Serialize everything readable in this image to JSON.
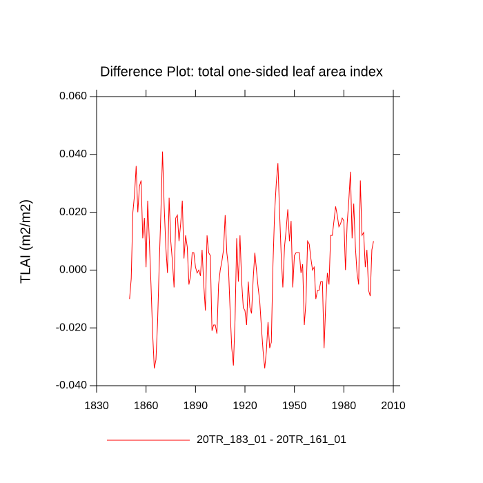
{
  "chart_data": {
    "type": "line",
    "title": "Difference Plot: total one-sided leaf area index",
    "y_label": "TLAI  (m2/m2)",
    "x": [
      1850,
      1851,
      1852,
      1853,
      1854,
      1855,
      1856,
      1857,
      1858,
      1859,
      1860,
      1861,
      1862,
      1863,
      1864,
      1865,
      1866,
      1867,
      1868,
      1869,
      1870,
      1871,
      1872,
      1873,
      1874,
      1875,
      1876,
      1877,
      1878,
      1879,
      1880,
      1881,
      1882,
      1883,
      1884,
      1885,
      1886,
      1887,
      1888,
      1889,
      1890,
      1891,
      1892,
      1893,
      1894,
      1895,
      1896,
      1897,
      1898,
      1899,
      1900,
      1901,
      1902,
      1903,
      1904,
      1905,
      1906,
      1907,
      1908,
      1909,
      1910,
      1911,
      1912,
      1913,
      1914,
      1915,
      1916,
      1917,
      1918,
      1919,
      1920,
      1921,
      1922,
      1923,
      1924,
      1925,
      1926,
      1927,
      1928,
      1929,
      1930,
      1931,
      1932,
      1933,
      1934,
      1935,
      1936,
      1937,
      1938,
      1939,
      1940,
      1941,
      1942,
      1943,
      1944,
      1945,
      1946,
      1947,
      1948,
      1949,
      1950,
      1951,
      1952,
      1953,
      1954,
      1955,
      1956,
      1957,
      1958,
      1959,
      1960,
      1961,
      1962,
      1963,
      1964,
      1965,
      1966,
      1967,
      1968,
      1969,
      1970,
      1971,
      1972,
      1973,
      1974,
      1975,
      1976,
      1977,
      1978,
      1979,
      1980,
      1981,
      1982,
      1983,
      1984,
      1985,
      1986,
      1987,
      1988,
      1989,
      1990,
      1991,
      1992,
      1993,
      1994,
      1995,
      1996,
      1997,
      1998
    ],
    "series": [
      {
        "name": "20TR_183_01 - 20TR_161_01",
        "color": "#ff0000",
        "values": [
          -0.01,
          -0.003,
          0.02,
          0.026,
          0.036,
          0.02,
          0.029,
          0.031,
          0.011,
          0.018,
          0.001,
          0.024,
          0.01,
          -0.005,
          -0.022,
          -0.034,
          -0.031,
          -0.018,
          0.002,
          0.02,
          0.041,
          0.022,
          0.008,
          -0.001,
          0.025,
          0.01,
          0.003,
          -0.006,
          0.018,
          0.019,
          0.01,
          0.016,
          0.024,
          0.004,
          0.012,
          0.008,
          -0.005,
          -0.002,
          0.006,
          0.006,
          0.001,
          -0.001,
          0.0,
          -0.002,
          0.007,
          -0.005,
          -0.014,
          0.012,
          0.006,
          0.005,
          -0.021,
          -0.019,
          -0.019,
          -0.022,
          -0.005,
          0.0,
          0.003,
          0.007,
          0.019,
          0.006,
          0.001,
          -0.014,
          -0.027,
          -0.033,
          -0.017,
          0.011,
          -0.004,
          0.012,
          -0.004,
          -0.013,
          -0.014,
          -0.019,
          -0.004,
          -0.013,
          -0.015,
          -0.003,
          0.006,
          0.0,
          -0.006,
          -0.011,
          -0.02,
          -0.028,
          -0.034,
          -0.028,
          -0.018,
          -0.027,
          -0.025,
          0.002,
          0.02,
          0.03,
          0.037,
          0.02,
          0.005,
          -0.006,
          0.008,
          0.014,
          0.021,
          0.01,
          0.017,
          -0.006,
          0.005,
          0.006,
          0.006,
          0.006,
          -0.001,
          0.002,
          -0.019,
          -0.011,
          0.01,
          0.009,
          0.004,
          0.0,
          0.001,
          -0.01,
          -0.007,
          -0.007,
          -0.004,
          -0.004,
          -0.027,
          -0.012,
          -0.001,
          -0.005,
          0.012,
          0.012,
          0.017,
          0.022,
          0.019,
          0.015,
          0.016,
          0.018,
          0.017,
          0.0,
          0.016,
          0.024,
          0.034,
          0.011,
          0.023,
          0.008,
          -0.001,
          -0.005,
          0.031,
          0.012,
          0.013,
          0.001,
          0.007,
          -0.007,
          -0.009,
          0.007,
          0.01
        ]
      }
    ],
    "xlim": [
      1830,
      2010
    ],
    "xticks": [
      1830,
      1860,
      1890,
      1920,
      1950,
      1980,
      2010
    ],
    "ylim": [
      -0.04,
      0.06
    ],
    "yticks": [
      {
        "value": -0.04,
        "label": "-0.040"
      },
      {
        "value": -0.02,
        "label": "-0.020"
      },
      {
        "value": 0,
        "label": "0.000"
      },
      {
        "value": 0.02,
        "label": "0.020"
      },
      {
        "value": 0.04,
        "label": "0.040"
      },
      {
        "value": 0.06,
        "label": "0.060"
      }
    ],
    "legend": "bottom"
  }
}
